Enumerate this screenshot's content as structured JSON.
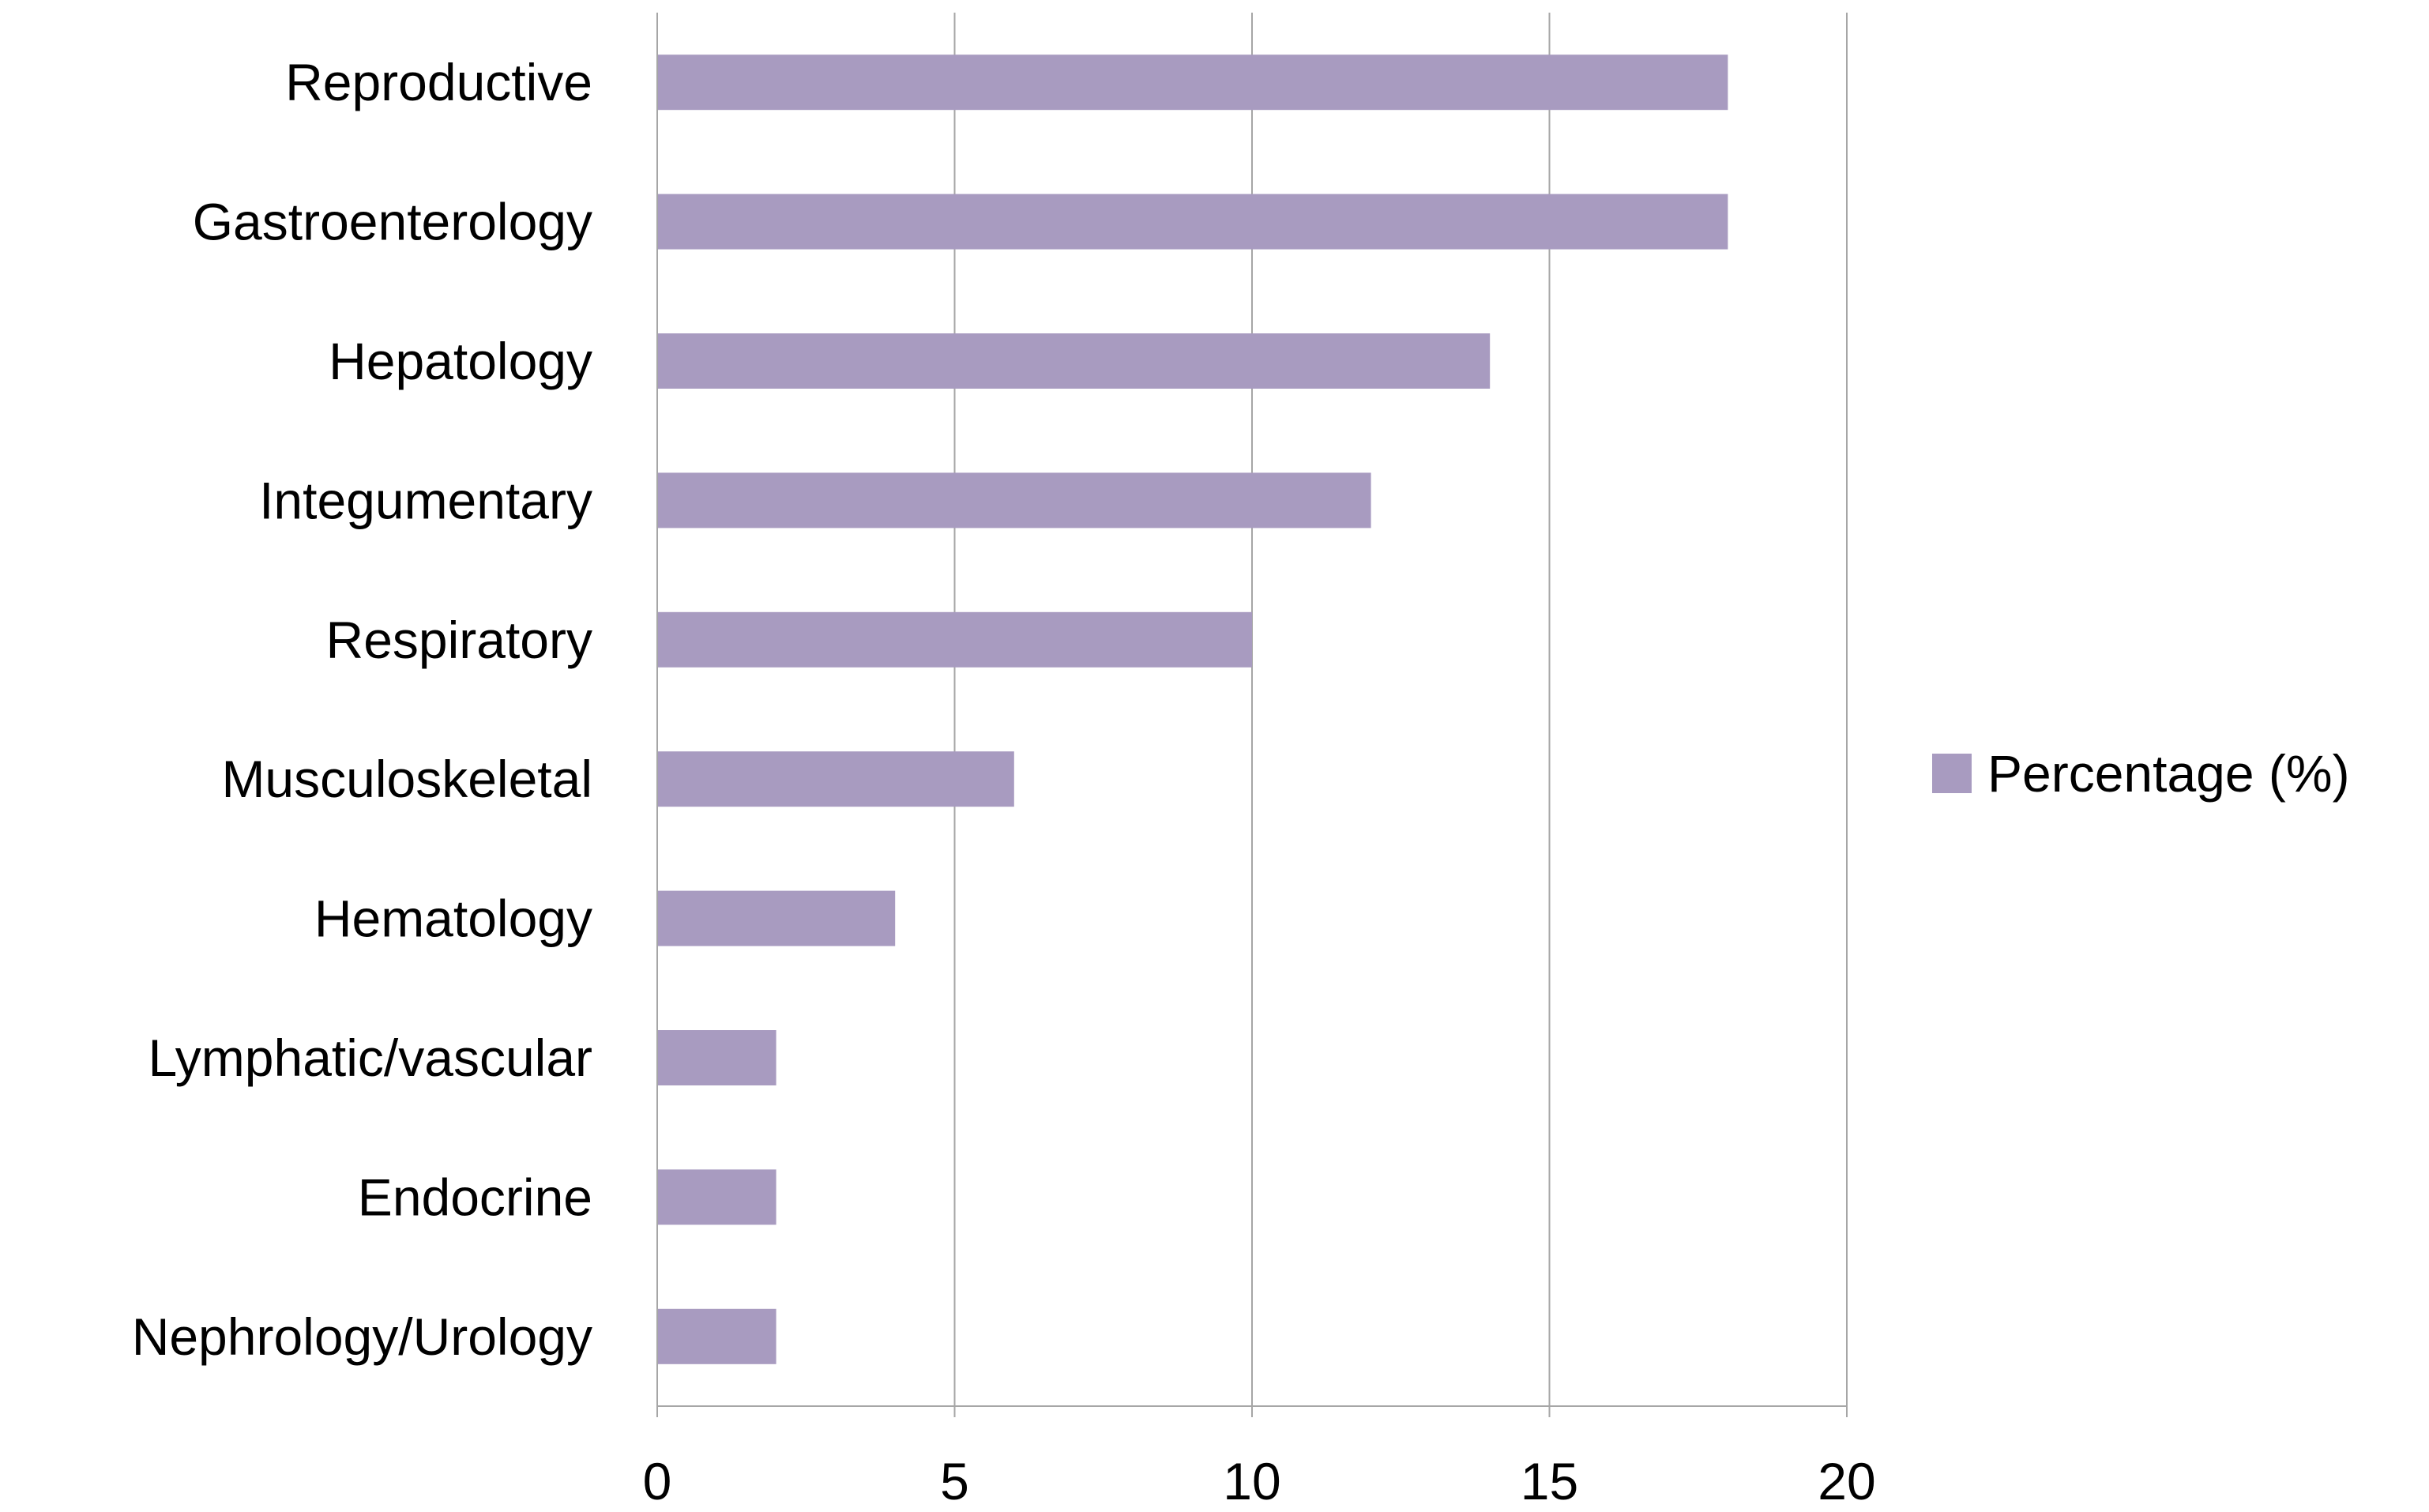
{
  "chart_data": {
    "type": "bar",
    "orientation": "horizontal",
    "categories": [
      "Reproductive",
      "Gastroenterology",
      "Hepatology",
      "Integumentary",
      "Respiratory",
      "Musculoskeletal",
      "Hematology",
      "Lymphatic/vascular",
      "Endocrine",
      "Nephrology/Urology"
    ],
    "series": [
      {
        "name": "Percentage (%)",
        "values": [
          18,
          18,
          14,
          12,
          10,
          6,
          4,
          2,
          2,
          2
        ],
        "color": "#a89bc0"
      }
    ],
    "xlim": [
      0,
      20
    ],
    "xticks": [
      0,
      5,
      10,
      15,
      20
    ],
    "xtick_labels": [
      "0",
      "5",
      "10",
      "15",
      "20"
    ],
    "grid": "vertical",
    "legend": {
      "position": "right"
    },
    "colors": {
      "bar": "#a89bc0",
      "grid": "#a6a6a6",
      "axis": "#a6a6a6"
    }
  }
}
